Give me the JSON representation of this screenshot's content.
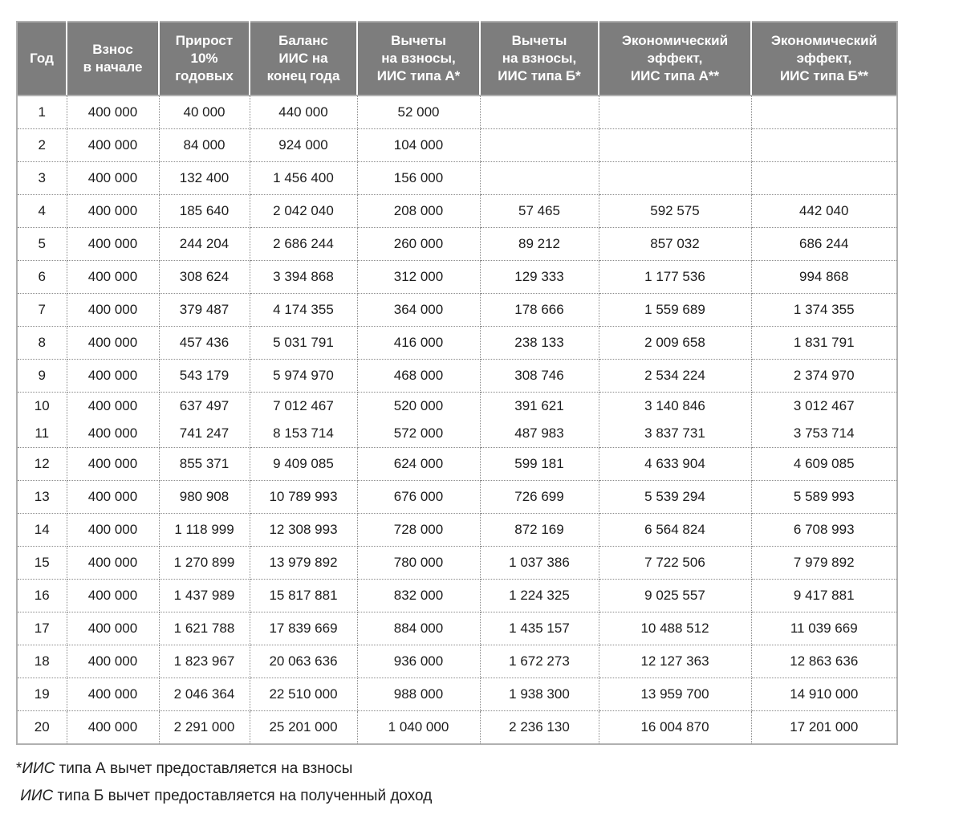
{
  "table": {
    "headers": [
      "Год",
      "Взнос\nв начале",
      "Прирост\n10%\nгодовых",
      "Баланс\nИИС на\nконец года",
      "Вычеты\nна взносы,\nИИС типа А*",
      "Вычеты\nна взносы,\nИИС типа Б*",
      "Экономический\nэффект,\nИИС типа А**",
      "Экономический\nэффект,\nИИС типа Б**"
    ],
    "row_groups": [
      {
        "lines": [
          [
            "1",
            "400 000",
            "40 000",
            "440 000",
            "52 000",
            "",
            "",
            ""
          ]
        ]
      },
      {
        "lines": [
          [
            "2",
            "400 000",
            "84 000",
            "924 000",
            "104 000",
            "",
            "",
            ""
          ]
        ]
      },
      {
        "lines": [
          [
            "3",
            "400 000",
            "132 400",
            "1 456 400",
            "156 000",
            "",
            "",
            ""
          ]
        ]
      },
      {
        "lines": [
          [
            "4",
            "400 000",
            "185 640",
            "2 042 040",
            "208 000",
            "57 465",
            "592 575",
            "442 040"
          ]
        ]
      },
      {
        "lines": [
          [
            "5",
            "400 000",
            "244 204",
            "2 686 244",
            "260 000",
            "89 212",
            "857 032",
            "686 244"
          ]
        ]
      },
      {
        "lines": [
          [
            "6",
            "400 000",
            "308 624",
            "3 394 868",
            "312 000",
            "129 333",
            "1 177 536",
            "994 868"
          ]
        ]
      },
      {
        "lines": [
          [
            "7",
            "400 000",
            "379 487",
            "4 174 355",
            "364 000",
            "178 666",
            "1 559 689",
            "1 374 355"
          ]
        ]
      },
      {
        "lines": [
          [
            "8",
            "400 000",
            "457 436",
            "5 031 791",
            "416 000",
            "238 133",
            "2 009 658",
            "1 831 791"
          ]
        ]
      },
      {
        "lines": [
          [
            "9",
            "400 000",
            "543 179",
            "5 974 970",
            "468 000",
            "308 746",
            "2 534 224",
            "2 374 970"
          ]
        ]
      },
      {
        "lines": [
          [
            "10",
            "400 000",
            "637 497",
            "7 012 467",
            "520 000",
            "391 621",
            "3 140 846",
            "3 012 467"
          ],
          [
            "11",
            "400 000",
            "741 247",
            "8 153 714",
            "572 000",
            "487 983",
            "3 837 731",
            "3 753 714"
          ]
        ]
      },
      {
        "lines": [
          [
            "12",
            "400 000",
            "855 371",
            "9 409 085",
            "624 000",
            "599 181",
            "4 633 904",
            "4 609 085"
          ]
        ]
      },
      {
        "lines": [
          [
            "13",
            "400 000",
            "980 908",
            "10 789 993",
            "676 000",
            "726 699",
            "5 539 294",
            "5 589 993"
          ]
        ]
      },
      {
        "lines": [
          [
            "14",
            "400 000",
            "1 118 999",
            "12 308 993",
            "728 000",
            "872 169",
            "6 564 824",
            "6 708 993"
          ]
        ]
      },
      {
        "lines": [
          [
            "15",
            "400 000",
            "1 270 899",
            "13 979 892",
            "780 000",
            "1 037 386",
            "7 722 506",
            "7 979 892"
          ]
        ]
      },
      {
        "lines": [
          [
            "16",
            "400 000",
            "1 437 989",
            "15 817 881",
            "832 000",
            "1 224 325",
            "9 025 557",
            "9 417 881"
          ]
        ]
      },
      {
        "lines": [
          [
            "17",
            "400 000",
            "1 621 788",
            "17 839 669",
            "884 000",
            "1 435 157",
            "10 488 512",
            "11 039 669"
          ]
        ]
      },
      {
        "lines": [
          [
            "18",
            "400 000",
            "1 823 967",
            "20 063 636",
            "936 000",
            "1 672 273",
            "12 127 363",
            "12 863 636"
          ]
        ]
      },
      {
        "lines": [
          [
            "19",
            "400 000",
            "2 046 364",
            "22 510 000",
            "988 000",
            "1 938 300",
            "13 959 700",
            "14 910 000"
          ]
        ]
      },
      {
        "lines": [
          [
            "20",
            "400 000",
            "2 291 000",
            "25 201 000",
            "1 040 000",
            "2 236 130",
            "16 004 870",
            "17 201 000"
          ]
        ]
      }
    ]
  },
  "footnotes": [
    {
      "lead": "*",
      "term": "ИИС",
      "text": " типа А вычет предоставляется на взносы"
    },
    {
      "lead": " ",
      "term": "ИИС",
      "text": " типа Б вычет предоставляется на полученный доход"
    }
  ],
  "colors": {
    "header_bg": "#7d7d7d",
    "header_text": "#ffffff",
    "outer_border": "#b0b0b0",
    "dotted_border": "#8a8a8a",
    "body_text": "#1c1c1c"
  }
}
